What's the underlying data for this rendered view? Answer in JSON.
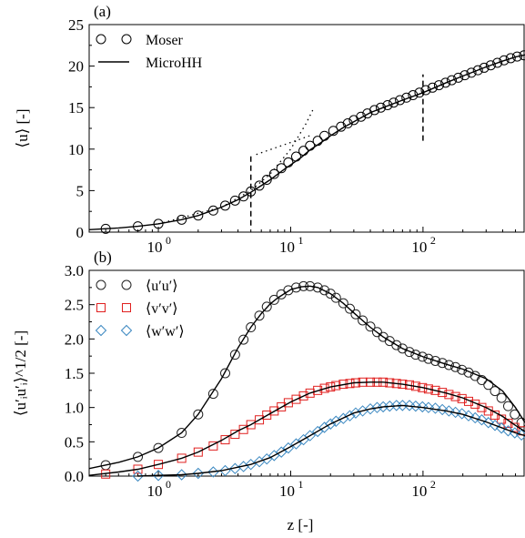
{
  "figure": {
    "xlabel": "z [-]",
    "colors": {
      "uu": "#222222",
      "vv": "#e0201f",
      "ww": "#3a87c0",
      "fit": "#000000"
    }
  },
  "chart_data": [
    {
      "type": "line",
      "panel_label": "(a)",
      "ylabel": "⟨u⟩ [-]",
      "xlabel": "",
      "x_scale": "log",
      "xlim": [
        0.3,
        590
      ],
      "ylim": [
        0,
        25
      ],
      "x_ticks": [
        1,
        10,
        100
      ],
      "x_tick_labels": [
        "10",
        "10",
        "10"
      ],
      "x_tick_exponents": [
        "0",
        "1",
        "2"
      ],
      "y_ticks": [
        0,
        5,
        10,
        15,
        20,
        25
      ],
      "y_tick_labels": [
        "0",
        "5",
        "10",
        "15",
        "20",
        "25"
      ],
      "legend": {
        "position": "top-left",
        "entries": [
          "Moser",
          "MicroHH"
        ]
      },
      "series": [
        {
          "name": "Moser",
          "style": "markers",
          "marker": "circle",
          "x": [
            0.4,
            0.7,
            1.0,
            1.5,
            2.0,
            2.6,
            3.2,
            3.8,
            4.4,
            5.0,
            5.8,
            6.6,
            7.5,
            8.5,
            9.6,
            11,
            12.5,
            14,
            16,
            18,
            21,
            24,
            27,
            30,
            34,
            38,
            43,
            48,
            54,
            60,
            67,
            75,
            84,
            94,
            105,
            118,
            132,
            148,
            165,
            185,
            207,
            232,
            260,
            290,
            325,
            365,
            410,
            460,
            515,
            580
          ],
          "y": [
            0.4,
            0.7,
            1.0,
            1.5,
            2.0,
            2.6,
            3.2,
            3.8,
            4.3,
            4.9,
            5.6,
            6.3,
            7.0,
            7.7,
            8.4,
            9.1,
            9.8,
            10.4,
            11.0,
            11.6,
            12.2,
            12.7,
            13.1,
            13.5,
            13.9,
            14.3,
            14.7,
            15.0,
            15.3,
            15.6,
            15.9,
            16.2,
            16.5,
            16.8,
            17.1,
            17.4,
            17.7,
            18.0,
            18.3,
            18.6,
            18.9,
            19.2,
            19.5,
            19.8,
            20.1,
            20.4,
            20.7,
            20.95,
            21.15,
            21.3
          ]
        },
        {
          "name": "MicroHH",
          "style": "solid",
          "x": [
            0.3,
            0.5,
            0.7,
            1.0,
            1.5,
            2.0,
            3.0,
            4.0,
            5.0,
            6.0,
            7.0,
            8.0,
            9.0,
            10,
            12,
            14,
            17,
            20,
            25,
            30,
            40,
            50,
            70,
            100,
            150,
            200,
            300,
            400,
            500,
            590
          ],
          "y": [
            0.3,
            0.5,
            0.7,
            1.0,
            1.5,
            2.0,
            3.0,
            3.9,
            4.8,
            5.6,
            6.3,
            7.0,
            7.6,
            8.1,
            9.0,
            9.9,
            10.8,
            11.6,
            12.6,
            13.3,
            14.4,
            15.0,
            15.9,
            16.8,
            18.0,
            18.8,
            19.9,
            20.6,
            21.1,
            21.35
          ]
        },
        {
          "style": "dotted",
          "x": [
            1,
            3,
            5,
            7,
            10,
            13,
            15
          ],
          "y": [
            1,
            3,
            5,
            7,
            10,
            13,
            15
          ]
        },
        {
          "style": "dotted",
          "x": [
            5.5,
            8,
            10,
            12,
            14
          ],
          "y": [
            9.35,
            10.26,
            10.8,
            11.24,
            11.62
          ]
        }
      ],
      "vlines": [
        {
          "x": 5,
          "y": [
            0.8,
            9.5
          ]
        },
        {
          "x": 100,
          "y": [
            11,
            19
          ]
        }
      ]
    },
    {
      "type": "line",
      "panel_label": "(b)",
      "ylabel": "⟨u′ᵢu′ᵢ⟩^1/2 [-]",
      "xlabel": "z [-]",
      "x_scale": "log",
      "xlim": [
        0.3,
        590
      ],
      "ylim": [
        0,
        3.0
      ],
      "x_ticks": [
        1,
        10,
        100
      ],
      "x_tick_labels": [
        "10",
        "10",
        "10"
      ],
      "x_tick_exponents": [
        "0",
        "1",
        "2"
      ],
      "y_ticks": [
        0,
        0.5,
        1.0,
        1.5,
        2.0,
        2.5,
        3.0
      ],
      "y_tick_labels": [
        "0.0",
        "0.5",
        "1.0",
        "1.5",
        "2.0",
        "2.5",
        "3.0"
      ],
      "legend": {
        "position": "top-left",
        "entries": [
          "⟨u′u′⟩",
          "⟨v′v′⟩",
          "⟨w′w′⟩"
        ]
      },
      "series": [
        {
          "name": "⟨u′u′⟩",
          "style": "markers",
          "marker": "circle",
          "color_key": "uu",
          "x": [
            0.4,
            0.7,
            1.0,
            1.5,
            2.0,
            2.6,
            3.2,
            3.8,
            4.4,
            5.0,
            5.8,
            6.6,
            7.5,
            8.5,
            9.6,
            11,
            12.5,
            14,
            16,
            18,
            20,
            22,
            25,
            28,
            31,
            35,
            40,
            45,
            50,
            56,
            63,
            70,
            79,
            88,
            99,
            110,
            124,
            140,
            157,
            176,
            197,
            221,
            248,
            278,
            312,
            350,
            392,
            440,
            494,
            555
          ],
          "y": [
            0.16,
            0.28,
            0.41,
            0.63,
            0.9,
            1.2,
            1.5,
            1.77,
            1.99,
            2.17,
            2.34,
            2.47,
            2.57,
            2.65,
            2.71,
            2.75,
            2.77,
            2.77,
            2.75,
            2.71,
            2.66,
            2.6,
            2.52,
            2.44,
            2.36,
            2.27,
            2.18,
            2.1,
            2.03,
            1.97,
            1.91,
            1.86,
            1.81,
            1.77,
            1.74,
            1.71,
            1.68,
            1.65,
            1.62,
            1.59,
            1.55,
            1.51,
            1.46,
            1.4,
            1.33,
            1.24,
            1.14,
            1.02,
            0.9,
            0.78
          ]
        },
        {
          "name": "⟨v′v′⟩",
          "style": "markers",
          "marker": "square",
          "color_key": "vv",
          "x": [
            0.4,
            0.7,
            1.0,
            1.5,
            2.0,
            2.6,
            3.2,
            3.8,
            4.4,
            5.0,
            5.8,
            6.6,
            7.5,
            8.5,
            9.6,
            11,
            12.5,
            14,
            16,
            18,
            20,
            22,
            25,
            28,
            31,
            35,
            40,
            45,
            50,
            56,
            63,
            70,
            79,
            88,
            99,
            110,
            124,
            140,
            157,
            176,
            197,
            221,
            248,
            278,
            312,
            350,
            392,
            440,
            494,
            555
          ],
          "y": [
            0.03,
            0.1,
            0.17,
            0.26,
            0.35,
            0.44,
            0.53,
            0.61,
            0.68,
            0.75,
            0.82,
            0.89,
            0.95,
            1.01,
            1.07,
            1.12,
            1.17,
            1.21,
            1.25,
            1.28,
            1.3,
            1.32,
            1.34,
            1.35,
            1.36,
            1.37,
            1.37,
            1.37,
            1.37,
            1.36,
            1.35,
            1.34,
            1.33,
            1.31,
            1.29,
            1.27,
            1.25,
            1.22,
            1.19,
            1.16,
            1.13,
            1.09,
            1.05,
            1.0,
            0.95,
            0.89,
            0.83,
            0.77,
            0.71,
            0.66
          ]
        },
        {
          "name": "⟨w′w′⟩",
          "style": "markers",
          "marker": "diamond",
          "color_key": "ww",
          "x": [
            0.7,
            1.0,
            1.5,
            2.0,
            2.6,
            3.2,
            3.8,
            4.4,
            5.0,
            5.8,
            6.6,
            7.5,
            8.5,
            9.6,
            11,
            12.5,
            14,
            16,
            18,
            20,
            22,
            25,
            28,
            31,
            35,
            40,
            45,
            50,
            56,
            63,
            70,
            79,
            88,
            99,
            110,
            124,
            140,
            157,
            176,
            197,
            221,
            248,
            278,
            312,
            350,
            392,
            440,
            494,
            555
          ],
          "y": [
            0.0,
            0.01,
            0.02,
            0.04,
            0.06,
            0.08,
            0.11,
            0.14,
            0.17,
            0.21,
            0.25,
            0.3,
            0.35,
            0.41,
            0.47,
            0.53,
            0.59,
            0.65,
            0.71,
            0.76,
            0.8,
            0.84,
            0.88,
            0.92,
            0.95,
            0.98,
            1.0,
            1.01,
            1.02,
            1.03,
            1.03,
            1.03,
            1.02,
            1.01,
            1.0,
            0.99,
            0.97,
            0.95,
            0.93,
            0.91,
            0.88,
            0.85,
            0.82,
            0.78,
            0.74,
            0.7,
            0.66,
            0.63,
            0.6
          ]
        },
        {
          "style": "solid",
          "color_key": "fit",
          "x": [
            0.3,
            0.5,
            0.7,
            1.0,
            1.5,
            2,
            3,
            4,
            5,
            6,
            7,
            8,
            10,
            12,
            14,
            16,
            20,
            25,
            30,
            40,
            50,
            70,
            100,
            150,
            200,
            300,
            400,
            500,
            590
          ],
          "y": [
            0.11,
            0.2,
            0.28,
            0.41,
            0.63,
            0.9,
            1.42,
            1.87,
            2.17,
            2.37,
            2.51,
            2.6,
            2.72,
            2.76,
            2.77,
            2.75,
            2.66,
            2.52,
            2.38,
            2.17,
            2.03,
            1.86,
            1.74,
            1.63,
            1.56,
            1.42,
            1.24,
            1.0,
            0.78
          ]
        },
        {
          "style": "solid",
          "color_key": "fit",
          "x": [
            0.3,
            0.5,
            0.7,
            1.0,
            1.5,
            2,
            3,
            4,
            5,
            7,
            10,
            14,
            20,
            30,
            40,
            50,
            70,
            100,
            150,
            200,
            300,
            400,
            500,
            590
          ],
          "y": [
            0.01,
            0.06,
            0.1,
            0.17,
            0.26,
            0.35,
            0.52,
            0.66,
            0.75,
            0.91,
            1.08,
            1.21,
            1.3,
            1.36,
            1.37,
            1.37,
            1.34,
            1.29,
            1.21,
            1.14,
            1.0,
            0.87,
            0.74,
            0.65
          ]
        },
        {
          "style": "solid",
          "color_key": "fit",
          "x": [
            0.7,
            1.0,
            1.5,
            2,
            3,
            4,
            5,
            7,
            10,
            14,
            20,
            30,
            40,
            50,
            70,
            100,
            150,
            200,
            300,
            400,
            500,
            590
          ],
          "y": [
            0.0,
            0.01,
            0.02,
            0.04,
            0.08,
            0.13,
            0.17,
            0.27,
            0.43,
            0.59,
            0.76,
            0.92,
            0.98,
            1.01,
            1.03,
            1.0,
            0.95,
            0.9,
            0.79,
            0.7,
            0.63,
            0.59
          ]
        }
      ]
    }
  ]
}
